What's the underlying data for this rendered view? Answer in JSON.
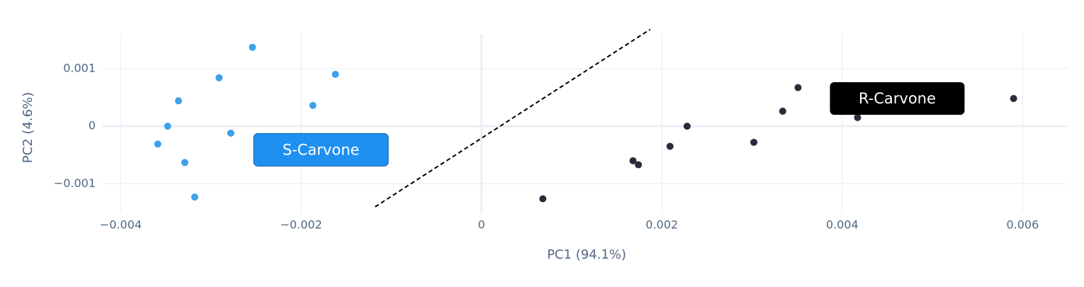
{
  "chart_data": {
    "type": "scatter",
    "x_label": "PC1 (94.1%)",
    "y_label": "PC2 (4.6%)",
    "xlim": [
      -0.0042,
      0.0065
    ],
    "ylim": [
      -0.0015,
      0.0016
    ],
    "xticks": [
      {
        "value": -0.004,
        "label": "−0.004"
      },
      {
        "value": -0.002,
        "label": "−0.002"
      },
      0,
      0.002,
      0.004,
      0.006
    ],
    "yticks": [
      {
        "value": -0.001,
        "label": "−0.001"
      },
      0,
      0.001
    ],
    "grid": true,
    "series": [
      {
        "color": "#3ea1e9",
        "x": [
          -0.00254,
          -0.00291,
          -0.00162,
          -0.00336,
          -0.00187,
          -0.00348,
          -0.00278,
          -0.00359,
          -0.00329,
          -0.00318
        ],
        "values": [
          0.00137,
          0.00084,
          0.0009,
          0.00044,
          0.00036,
          0.0,
          -0.00012,
          -0.00031,
          -0.00063,
          -0.00123
        ]
      },
      {
        "color": "#2b2b3d",
        "x": [
          0.00351,
          0.00334,
          0.0059,
          0.00417,
          0.00228,
          0.00209,
          0.00302,
          0.00168,
          0.00174,
          0.00068
        ],
        "values": [
          0.00067,
          0.00026,
          0.00048,
          0.00015,
          0.0,
          -0.00035,
          -0.00028,
          -0.0006,
          -0.00067,
          -0.00126
        ]
      }
    ],
    "divider": {
      "x": [
        -0.00118,
        0.00187
      ],
      "y": [
        -0.0014,
        0.00168
      ]
    },
    "annotations": [
      {
        "text": "S-Carvone",
        "x": -0.00178,
        "y": -0.00041,
        "color": "#1e90f0"
      },
      {
        "text": "R-Carvone",
        "x": 0.00461,
        "y": 0.00048,
        "color": "#000000"
      }
    ]
  }
}
